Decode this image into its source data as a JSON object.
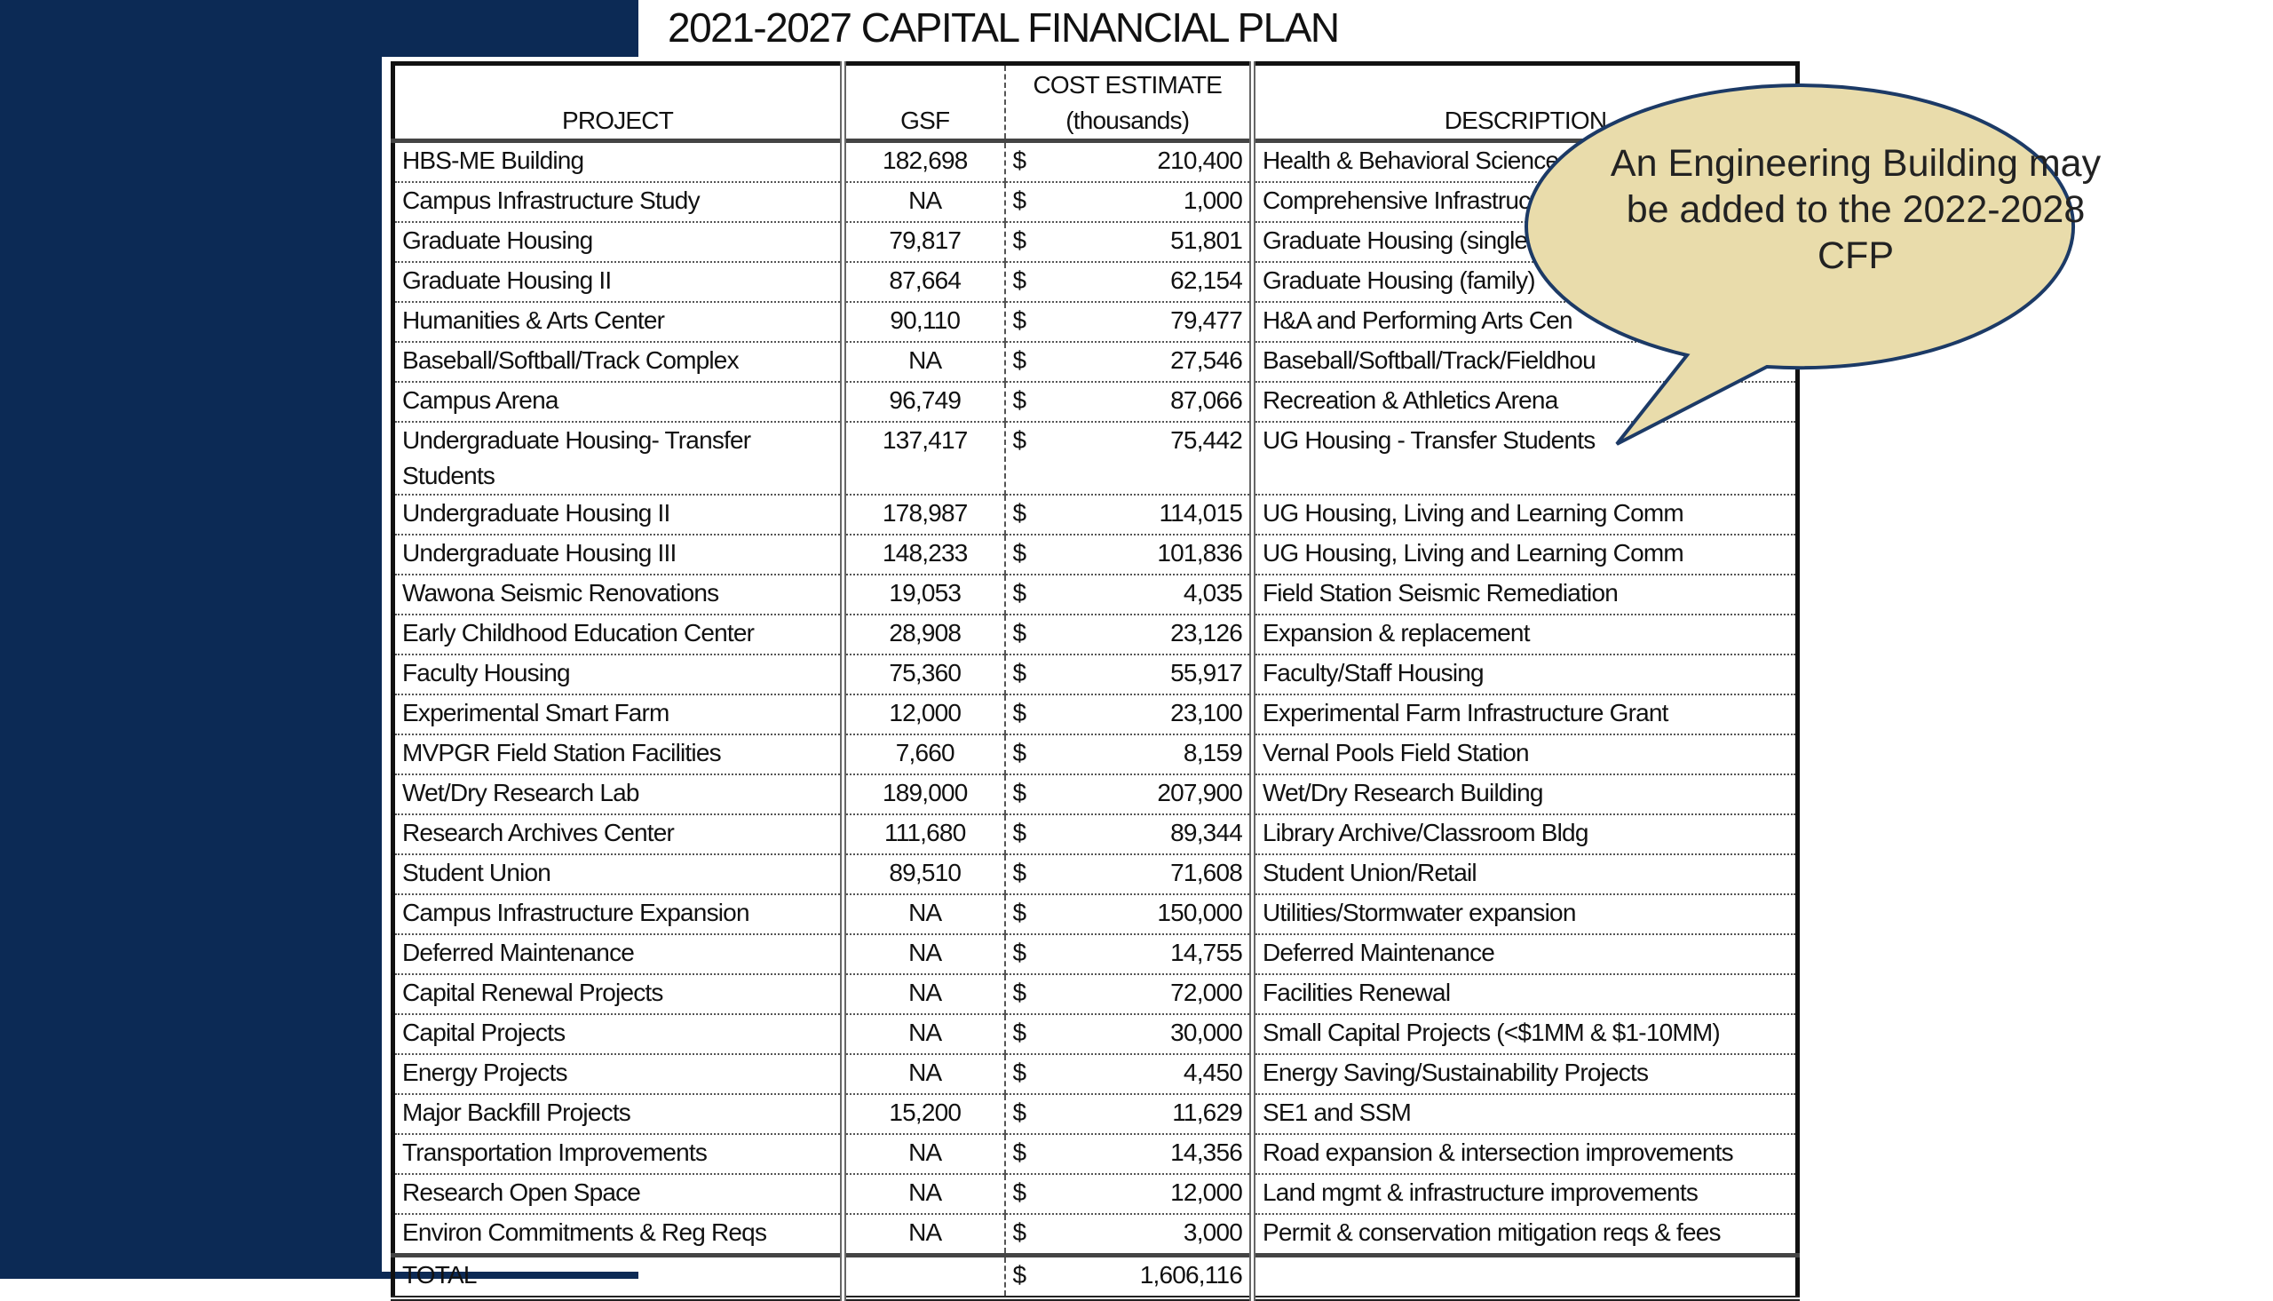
{
  "title": "2021-2027 CAPITAL FINANCIAL PLAN",
  "headers": {
    "project": "PROJECT",
    "gsf": "GSF",
    "cost_line1": "COST ESTIMATE",
    "cost_line2": "(thousands)",
    "description": "DESCRIPTION"
  },
  "currency_symbol": "$",
  "rows": [
    {
      "project": "HBS-ME Building",
      "gsf": "182,698",
      "cost": "210,400",
      "description": "Health & Behavioral Sciences"
    },
    {
      "project": "Campus Infrastructure Study",
      "gsf": "NA",
      "cost": "1,000",
      "description": "Comprehensive Infrastruct"
    },
    {
      "project": "Graduate Housing",
      "gsf": "79,817",
      "cost": "51,801",
      "description": "Graduate Housing (singles"
    },
    {
      "project": "Graduate Housing II",
      "gsf": "87,664",
      "cost": "62,154",
      "description": "Graduate Housing (family)"
    },
    {
      "project": "Humanities & Arts Center",
      "gsf": "90,110",
      "cost": "79,477",
      "description": "H&A and Performing Arts Cen"
    },
    {
      "project": "Baseball/Softball/Track Complex",
      "gsf": "NA",
      "cost": "27,546",
      "description": "Baseball/Softball/Track/Fieldhou"
    },
    {
      "project": "Campus Arena",
      "gsf": "96,749",
      "cost": "87,066",
      "description": "Recreation & Athletics Arena"
    },
    {
      "project": "Undergraduate Housing- Transfer Students",
      "gsf": "137,417",
      "cost": "75,442",
      "description": "UG Housing - Transfer Students"
    },
    {
      "project": "Undergraduate Housing II",
      "gsf": "178,987",
      "cost": "114,015",
      "description": "UG Housing, Living and Learning Comm"
    },
    {
      "project": "Undergraduate Housing III",
      "gsf": "148,233",
      "cost": "101,836",
      "description": "UG Housing, Living and Learning Comm"
    },
    {
      "project": "Wawona Seismic Renovations",
      "gsf": "19,053",
      "cost": "4,035",
      "description": "Field Station Seismic Remediation"
    },
    {
      "project": "Early Childhood Education Center",
      "gsf": "28,908",
      "cost": "23,126",
      "description": "Expansion & replacement"
    },
    {
      "project": "Faculty Housing",
      "gsf": "75,360",
      "cost": "55,917",
      "description": "Faculty/Staff Housing"
    },
    {
      "project": "Experimental Smart Farm",
      "gsf": "12,000",
      "cost": "23,100",
      "description": "Experimental Farm Infrastructure Grant"
    },
    {
      "project": "MVPGR Field Station Facilities",
      "gsf": "7,660",
      "cost": "8,159",
      "description": "Vernal Pools Field Station"
    },
    {
      "project": "Wet/Dry Research Lab",
      "gsf": "189,000",
      "cost": "207,900",
      "description": "Wet/Dry Research Building"
    },
    {
      "project": "Research Archives Center",
      "gsf": "111,680",
      "cost": "89,344",
      "description": "Library Archive/Classroom Bldg"
    },
    {
      "project": "Student Union",
      "gsf": "89,510",
      "cost": "71,608",
      "description": "Student Union/Retail"
    },
    {
      "project": "Campus Infrastructure Expansion",
      "gsf": "NA",
      "cost": "150,000",
      "description": "Utilities/Stormwater expansion"
    },
    {
      "project": "Deferred Maintenance",
      "gsf": "NA",
      "cost": "14,755",
      "description": "Deferred Maintenance"
    },
    {
      "project": "Capital Renewal Projects",
      "gsf": "NA",
      "cost": "72,000",
      "description": "Facilities Renewal"
    },
    {
      "project": "Capital Projects",
      "gsf": "NA",
      "cost": "30,000",
      "description": "Small Capital Projects (<$1MM & $1-10MM)"
    },
    {
      "project": "Energy Projects",
      "gsf": "NA",
      "cost": "4,450",
      "description": "Energy Saving/Sustainability Projects"
    },
    {
      "project": "Major Backfill Projects",
      "gsf": "15,200",
      "cost": "11,629",
      "description": "SE1 and SSM"
    },
    {
      "project": "Transportation Improvements",
      "gsf": "NA",
      "cost": "14,356",
      "description": "Road expansion & intersection improvements"
    },
    {
      "project": "Research Open Space",
      "gsf": "NA",
      "cost": "12,000",
      "description": "Land mgmt & infrastructure improvements"
    },
    {
      "project": "Environ Commitments & Reg Reqs",
      "gsf": "NA",
      "cost": "3,000",
      "description": "Permit & conservation mitigation reqs & fees"
    }
  ],
  "total": {
    "label": "TOTAL",
    "cost": "1,606,116"
  },
  "callout": {
    "text": "An Engineering Building may be added to the 2022-2028 CFP",
    "fill": "#e9dcab",
    "border": "#1c3a66"
  },
  "colors": {
    "navy": "#0c2a55"
  }
}
